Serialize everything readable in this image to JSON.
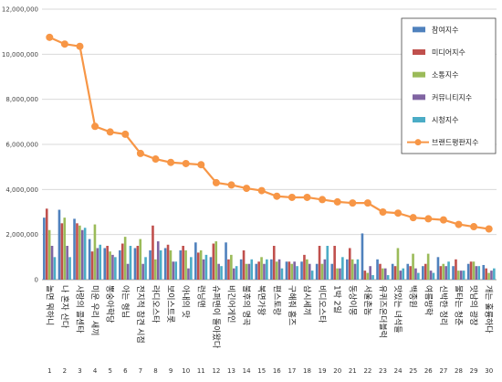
{
  "chart_data": {
    "type": "bar",
    "y_ticks": [
      "0",
      "2,000,000",
      "4,000,000",
      "6,000,000",
      "8,000,000",
      "10,000,000",
      "12,000,000"
    ],
    "ylim": [
      0,
      12000000
    ],
    "grid": true,
    "legend_position": "right",
    "categories": [
      "놀면 뭐하니",
      "나 혼자 산다",
      "사랑의 콜센타",
      "미운 우리 새끼",
      "뽕숭아학당",
      "아는 형님",
      "전지적 참견 시점",
      "라디오스타",
      "보이스트롯",
      "아내의 맛",
      "런닝맨",
      "슈퍼맨이 돌아왔다",
      "비긴어게인",
      "불후의 명곡",
      "복면가왕",
      "편스토랑",
      "구해줘 홈즈",
      "삼시세끼",
      "비디오스타",
      "1박 2일",
      "동상이몽",
      "서울촌놈",
      "유퀴즈온더블럭",
      "맛있는 녀석들",
      "백종원",
      "여름방학",
      "신박한 정리",
      "불타는 청춘",
      "맛남의 광장",
      "개는 훌륭하다"
    ],
    "rank_labels": [
      "1",
      "2",
      "3",
      "4",
      "5",
      "6",
      "7",
      "8",
      "9",
      "10",
      "11",
      "12",
      "13",
      "14",
      "15",
      "16",
      "17",
      "18",
      "19",
      "20",
      "21",
      "22",
      "23",
      "24",
      "25",
      "26",
      "27",
      "28",
      "29",
      "30"
    ],
    "series": [
      {
        "name": "참여지수",
        "color": "#4f81bd",
        "type": "bar",
        "values": [
          2750000,
          3100000,
          2700000,
          1800000,
          1400000,
          1300000,
          1400000,
          1300000,
          1400000,
          1300000,
          1650000,
          1000000,
          1650000,
          900000,
          700000,
          900000,
          800000,
          800000,
          700000,
          700000,
          900000,
          2050000,
          900000,
          700000,
          700000,
          600000,
          1000000,
          600000,
          700000,
          650000
        ]
      },
      {
        "name": "미디어지수",
        "color": "#c0504d",
        "type": "bar",
        "values": [
          3150000,
          2500000,
          2500000,
          1250000,
          1500000,
          1600000,
          1500000,
          2400000,
          1550000,
          1500000,
          1200000,
          1600000,
          900000,
          1300000,
          800000,
          1500000,
          800000,
          1100000,
          1500000,
          1500000,
          1400000,
          400000,
          700000,
          600000,
          600000,
          700000,
          600000,
          900000,
          800000,
          500000
        ]
      },
      {
        "name": "소통지수",
        "color": "#9bbb59",
        "type": "bar",
        "values": [
          2200000,
          2750000,
          2400000,
          2450000,
          1250000,
          1900000,
          1800000,
          900000,
          1300000,
          1300000,
          1300000,
          1700000,
          1100000,
          700000,
          1000000,
          800000,
          700000,
          900000,
          700000,
          500000,
          900000,
          300000,
          500000,
          1400000,
          1150000,
          1150000,
          700000,
          400000,
          800000,
          300000
        ]
      },
      {
        "name": "커뮤니티지수",
        "color": "#8064a2",
        "type": "bar",
        "values": [
          1500000,
          1500000,
          2200000,
          1400000,
          1100000,
          700000,
          700000,
          1700000,
          800000,
          500000,
          900000,
          700000,
          500000,
          700000,
          700000,
          900000,
          800000,
          700000,
          900000,
          500000,
          700000,
          600000,
          500000,
          400000,
          500000,
          400000,
          600000,
          400000,
          600000,
          400000
        ]
      },
      {
        "name": "시청지수",
        "color": "#4bacc6",
        "type": "bar",
        "values": [
          1000000,
          1000000,
          2300000,
          1550000,
          1000000,
          1500000,
          1000000,
          1300000,
          800000,
          1000000,
          1100000,
          600000,
          600000,
          900000,
          900000,
          500000,
          600000,
          400000,
          1500000,
          1000000,
          900000,
          200000,
          200000,
          500000,
          300000,
          300000,
          800000,
          400000,
          600000,
          500000
        ]
      },
      {
        "name": "브랜드평판지수",
        "color": "#f79646",
        "type": "line",
        "values": [
          10750000,
          10450000,
          10350000,
          6800000,
          6550000,
          6450000,
          5600000,
          5350000,
          5200000,
          5150000,
          5100000,
          4300000,
          4200000,
          4050000,
          3950000,
          3700000,
          3650000,
          3650000,
          3550000,
          3450000,
          3400000,
          3400000,
          3000000,
          2950000,
          2750000,
          2700000,
          2650000,
          2450000,
          2350000,
          2250000
        ]
      }
    ]
  }
}
